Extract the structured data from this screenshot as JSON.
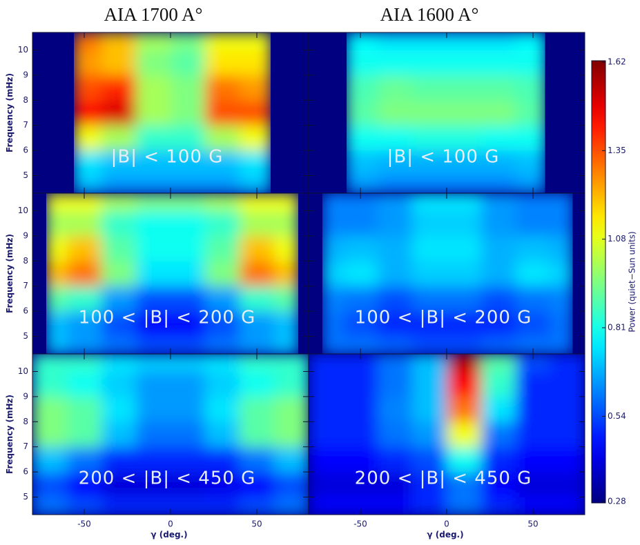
{
  "chart_data": {
    "type": "heatmap",
    "column_titles": [
      "AIA 1700 A°",
      "AIA 1600 A°"
    ],
    "xlabel": "γ (deg.)",
    "ylabel": "Frequency (mHz)",
    "xlim": [
      -80,
      80
    ],
    "ylim": [
      4.3,
      10.7
    ],
    "xticks": [
      -50,
      0,
      50
    ],
    "yticks": [
      5,
      6,
      7,
      8,
      9,
      10
    ],
    "ybins": [
      4.3,
      5,
      6,
      7,
      8,
      9,
      10,
      10.7
    ],
    "colorbar": {
      "label": "Power (quiet−Sun units)",
      "clim": [
        0.28,
        1.62
      ],
      "ticks": [
        0.28,
        0.54,
        0.81,
        1.08,
        1.35,
        1.62
      ],
      "colormap": "jet"
    },
    "rows": [
      {
        "label": "|B| < 100 G",
        "panels": [
          {
            "xbins": [
              -56,
              -40,
              -20,
              0,
              20,
              40,
              58
            ],
            "values": [
              [
                0.7,
                0.65,
                0.65,
                0.65,
                0.65,
                0.7
              ],
              [
                0.75,
                0.7,
                0.7,
                0.7,
                0.7,
                0.75
              ],
              [
                1.1,
                1.0,
                0.85,
                0.85,
                1.0,
                1.1
              ],
              [
                1.45,
                1.5,
                1.0,
                0.95,
                1.35,
                1.35
              ],
              [
                1.35,
                1.4,
                1.0,
                0.95,
                1.3,
                1.25
              ],
              [
                1.25,
                1.2,
                0.95,
                0.9,
                1.15,
                1.15
              ],
              [
                1.3,
                1.2,
                1.0,
                0.95,
                1.1,
                1.1
              ]
            ]
          },
          {
            "xbins": [
              -58,
              -40,
              -20,
              0,
              20,
              40,
              57
            ],
            "values": [
              [
                0.65,
                0.62,
                0.62,
                0.62,
                0.62,
                0.65
              ],
              [
                0.7,
                0.68,
                0.68,
                0.68,
                0.68,
                0.7
              ],
              [
                0.8,
                0.8,
                0.82,
                0.82,
                0.8,
                0.8
              ],
              [
                0.9,
                0.95,
                0.95,
                0.95,
                0.95,
                0.9
              ],
              [
                0.88,
                0.92,
                0.9,
                0.9,
                0.9,
                0.88
              ],
              [
                0.8,
                0.8,
                0.8,
                0.8,
                0.8,
                0.8
              ],
              [
                0.78,
                0.75,
                0.75,
                0.75,
                0.75,
                0.78
              ]
            ]
          }
        ]
      },
      {
        "label": "100 < |B| < 200 G",
        "panels": [
          {
            "xbins": [
              -72,
              -60,
              -40,
              -20,
              0,
              20,
              40,
              60,
              74
            ],
            "values": [
              [
                0.7,
                0.65,
                0.6,
                0.55,
                0.55,
                0.6,
                0.65,
                0.7
              ],
              [
                0.7,
                0.65,
                0.55,
                0.45,
                0.45,
                0.55,
                0.65,
                0.7
              ],
              [
                0.9,
                0.85,
                0.65,
                0.55,
                0.55,
                0.65,
                0.85,
                0.9
              ],
              [
                1.2,
                1.3,
                0.95,
                0.75,
                0.75,
                0.95,
                1.3,
                1.2
              ],
              [
                1.1,
                1.2,
                0.9,
                0.8,
                0.8,
                0.9,
                1.2,
                1.1
              ],
              [
                1.0,
                1.0,
                0.85,
                0.8,
                0.8,
                0.85,
                1.0,
                1.0
              ],
              [
                1.1,
                1.1,
                1.0,
                0.95,
                0.95,
                1.0,
                1.1,
                1.1
              ]
            ]
          },
          {
            "xbins": [
              -72,
              -60,
              -40,
              -20,
              0,
              20,
              40,
              60,
              73
            ],
            "values": [
              [
                0.6,
                0.6,
                0.58,
                0.55,
                0.55,
                0.58,
                0.6,
                0.6
              ],
              [
                0.6,
                0.55,
                0.5,
                0.5,
                0.5,
                0.5,
                0.55,
                0.6
              ],
              [
                0.62,
                0.6,
                0.55,
                0.6,
                0.6,
                0.55,
                0.6,
                0.62
              ],
              [
                0.72,
                0.75,
                0.68,
                0.72,
                0.72,
                0.68,
                0.75,
                0.72
              ],
              [
                0.68,
                0.7,
                0.68,
                0.75,
                0.75,
                0.68,
                0.7,
                0.68
              ],
              [
                0.62,
                0.62,
                0.65,
                0.72,
                0.72,
                0.65,
                0.62,
                0.62
              ],
              [
                0.62,
                0.62,
                0.65,
                0.75,
                0.75,
                0.65,
                0.62,
                0.62
              ]
            ]
          }
        ]
      },
      {
        "label": "200 < |B| < 450 G",
        "panels": [
          {
            "xbins": [
              -80,
              -60,
              -40,
              -20,
              0,
              20,
              40,
              60,
              80
            ],
            "values": [
              [
                0.6,
                0.55,
                0.5,
                0.5,
                0.5,
                0.5,
                0.55,
                0.6
              ],
              [
                0.55,
                0.45,
                0.4,
                0.4,
                0.4,
                0.42,
                0.45,
                0.55
              ],
              [
                0.7,
                0.6,
                0.5,
                0.5,
                0.5,
                0.5,
                0.6,
                0.7
              ],
              [
                0.95,
                0.9,
                0.7,
                0.6,
                0.6,
                0.7,
                0.9,
                0.95
              ],
              [
                0.95,
                0.9,
                0.75,
                0.65,
                0.65,
                0.75,
                0.9,
                0.95
              ],
              [
                0.85,
                0.8,
                0.72,
                0.65,
                0.65,
                0.72,
                0.8,
                0.85
              ],
              [
                0.85,
                0.85,
                0.75,
                0.72,
                0.72,
                0.75,
                0.85,
                0.85
              ]
            ]
          },
          {
            "xbins": [
              -80,
              -60,
              -40,
              -20,
              0,
              20,
              40,
              60,
              80
            ],
            "values": [
              [
                0.45,
                0.45,
                0.45,
                0.5,
                0.6,
                0.5,
                0.45,
                0.45
              ],
              [
                0.4,
                0.4,
                0.4,
                0.5,
                0.6,
                0.45,
                0.4,
                0.4
              ],
              [
                0.45,
                0.45,
                0.5,
                0.55,
                0.8,
                0.5,
                0.45,
                0.45
              ],
              [
                0.5,
                0.5,
                0.6,
                0.65,
                1.1,
                0.6,
                0.5,
                0.5
              ],
              [
                0.5,
                0.5,
                0.62,
                0.7,
                1.3,
                0.75,
                0.5,
                0.5
              ],
              [
                0.5,
                0.5,
                0.6,
                0.7,
                1.45,
                0.85,
                0.5,
                0.5
              ],
              [
                0.5,
                0.5,
                0.6,
                0.7,
                1.55,
                0.9,
                0.55,
                0.5
              ]
            ]
          }
        ]
      }
    ]
  }
}
